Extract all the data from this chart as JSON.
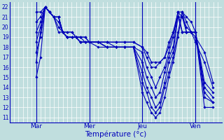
{
  "xlabel": "Température (°c)",
  "background_color": "#c0dede",
  "grid_color": "#ffffff",
  "line_color": "#0000bb",
  "marker": "D",
  "markersize": 1.8,
  "linewidth": 0.8,
  "ylim": [
    10.5,
    22.5
  ],
  "yticks": [
    11,
    12,
    13,
    14,
    15,
    16,
    17,
    18,
    19,
    20,
    21,
    22
  ],
  "xlim": [
    -0.5,
    3.5
  ],
  "xtick_positions": [
    0,
    1,
    2,
    3
  ],
  "day_labels": [
    "Mar",
    "Mer",
    "Jeu",
    "Ven"
  ],
  "series": [
    {
      "x": [
        0.0,
        0.08,
        0.17,
        0.25,
        0.33,
        0.42,
        0.5,
        0.58,
        0.67,
        0.75,
        0.83,
        0.92,
        1.0,
        1.17,
        1.33,
        1.5,
        1.67,
        1.83,
        2.0,
        2.08,
        2.17,
        2.25,
        2.33,
        2.42,
        2.5,
        2.58,
        2.67,
        2.75,
        2.83,
        2.92,
        3.0,
        3.17,
        3.33
      ],
      "y": [
        15.0,
        17.0,
        22.0,
        21.5,
        21.0,
        19.5,
        19.5,
        19.0,
        19.0,
        19.0,
        18.5,
        18.5,
        18.5,
        18.0,
        18.0,
        18.0,
        18.0,
        18.0,
        13.5,
        12.5,
        11.5,
        11.0,
        11.5,
        13.0,
        15.0,
        16.5,
        19.0,
        21.5,
        21.0,
        20.5,
        19.5,
        12.0,
        12.0
      ]
    },
    {
      "x": [
        0.0,
        0.08,
        0.17,
        0.25,
        0.33,
        0.42,
        0.5,
        0.58,
        0.67,
        0.75,
        0.83,
        0.92,
        1.0,
        1.17,
        1.33,
        1.5,
        1.67,
        1.83,
        2.0,
        2.08,
        2.17,
        2.25,
        2.33,
        2.42,
        2.5,
        2.58,
        2.67,
        2.75,
        2.83,
        2.92,
        3.0,
        3.17,
        3.33
      ],
      "y": [
        17.5,
        19.0,
        22.0,
        21.5,
        21.0,
        20.0,
        19.5,
        19.0,
        19.0,
        19.0,
        18.5,
        18.5,
        18.5,
        18.5,
        18.0,
        18.0,
        18.0,
        18.0,
        14.5,
        13.5,
        12.0,
        11.5,
        12.0,
        14.0,
        15.5,
        17.0,
        19.5,
        21.5,
        20.5,
        19.5,
        19.5,
        13.0,
        12.5
      ]
    },
    {
      "x": [
        0.0,
        0.08,
        0.17,
        0.25,
        0.33,
        0.42,
        0.5,
        0.58,
        0.67,
        0.75,
        0.83,
        0.92,
        1.0,
        1.17,
        1.33,
        1.5,
        1.67,
        1.83,
        2.0,
        2.08,
        2.17,
        2.25,
        2.33,
        2.42,
        2.5,
        2.58,
        2.67,
        2.75,
        2.83,
        2.92,
        3.0,
        3.17,
        3.33
      ],
      "y": [
        18.5,
        20.0,
        22.0,
        21.5,
        21.0,
        20.5,
        19.5,
        19.0,
        19.0,
        19.0,
        18.5,
        18.5,
        18.5,
        18.5,
        18.0,
        18.0,
        18.0,
        18.0,
        15.5,
        14.0,
        13.0,
        12.0,
        12.5,
        14.5,
        16.5,
        17.5,
        21.0,
        21.0,
        20.0,
        19.5,
        19.5,
        13.5,
        12.5
      ]
    },
    {
      "x": [
        0.0,
        0.08,
        0.17,
        0.25,
        0.33,
        0.42,
        0.5,
        0.58,
        0.67,
        0.75,
        0.83,
        0.92,
        1.0,
        1.17,
        1.33,
        1.5,
        1.67,
        1.83,
        2.0,
        2.08,
        2.17,
        2.25,
        2.33,
        2.42,
        2.5,
        2.58,
        2.67,
        2.75,
        2.83,
        2.92,
        3.0,
        3.17,
        3.33
      ],
      "y": [
        19.5,
        20.5,
        22.0,
        21.5,
        21.0,
        21.0,
        19.5,
        19.0,
        19.0,
        19.0,
        18.5,
        18.5,
        18.5,
        18.5,
        18.0,
        18.0,
        18.0,
        18.0,
        16.5,
        15.0,
        14.0,
        13.0,
        13.5,
        15.5,
        17.0,
        18.0,
        21.5,
        21.5,
        19.5,
        19.5,
        19.5,
        14.0,
        13.0
      ]
    },
    {
      "x": [
        0.0,
        0.08,
        0.17,
        0.25,
        0.33,
        0.42,
        0.5,
        0.58,
        0.67,
        0.75,
        0.83,
        0.92,
        1.0,
        1.17,
        1.33,
        1.5,
        1.67,
        1.83,
        2.0,
        2.08,
        2.17,
        2.25,
        2.33,
        2.42,
        2.5,
        2.58,
        2.67,
        2.75,
        2.83,
        2.92,
        3.0,
        3.17,
        3.33
      ],
      "y": [
        20.5,
        21.0,
        22.0,
        21.5,
        21.0,
        21.0,
        19.5,
        19.0,
        19.0,
        19.0,
        19.0,
        18.5,
        18.5,
        18.5,
        18.5,
        18.0,
        18.0,
        18.0,
        17.5,
        16.0,
        15.0,
        14.0,
        15.0,
        16.0,
        17.5,
        19.0,
        21.5,
        21.0,
        19.5,
        19.5,
        19.5,
        14.5,
        13.5
      ]
    },
    {
      "x": [
        0.0,
        0.08,
        0.17,
        0.25,
        0.33,
        0.42,
        0.5,
        0.58,
        0.67,
        0.75,
        0.83,
        0.92,
        1.0,
        1.17,
        1.33,
        1.5,
        1.67,
        1.83,
        2.0,
        2.08,
        2.17,
        2.25,
        2.33,
        2.42,
        2.5,
        2.58,
        2.67,
        2.75,
        2.83,
        2.92,
        3.0,
        3.17,
        3.33
      ],
      "y": [
        21.5,
        21.5,
        22.0,
        21.5,
        21.0,
        21.0,
        19.5,
        19.5,
        19.5,
        19.0,
        19.0,
        19.0,
        18.5,
        18.5,
        18.5,
        18.5,
        18.5,
        18.5,
        18.0,
        17.5,
        16.5,
        16.5,
        16.5,
        17.0,
        18.5,
        19.5,
        21.5,
        19.5,
        19.5,
        19.5,
        19.0,
        17.5,
        14.5
      ]
    },
    {
      "x": [
        0.0,
        0.08,
        0.17,
        0.25,
        0.33,
        0.42,
        0.5,
        0.58,
        0.67,
        0.75,
        0.83,
        0.92,
        1.0,
        1.17,
        1.33,
        1.5,
        1.67,
        1.83,
        2.0,
        2.08,
        2.17,
        2.25,
        2.33,
        2.42,
        2.5,
        2.58,
        2.67,
        2.75,
        2.83,
        2.92,
        3.0,
        3.17,
        3.33
      ],
      "y": [
        16.5,
        19.5,
        22.0,
        21.5,
        21.0,
        21.0,
        19.5,
        19.5,
        19.5,
        19.0,
        19.0,
        19.0,
        18.5,
        18.5,
        18.5,
        18.5,
        18.5,
        18.5,
        18.0,
        17.0,
        16.0,
        16.0,
        16.5,
        17.0,
        18.0,
        19.5,
        21.0,
        19.5,
        19.5,
        19.5,
        18.5,
        16.5,
        14.0
      ]
    }
  ],
  "vlines": [
    0.0,
    1.0,
    2.0,
    3.0
  ]
}
